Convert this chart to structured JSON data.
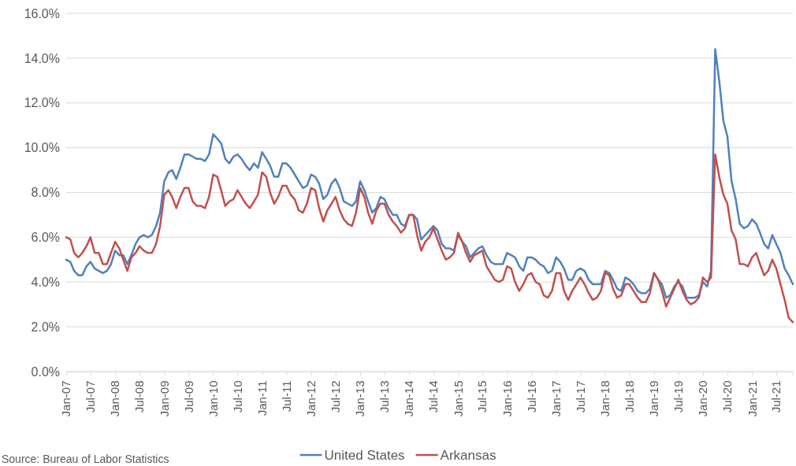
{
  "chart_data": {
    "type": "line",
    "legend": "bottom",
    "grid": "y",
    "marker": "none",
    "line_style": "solid",
    "annotations": [
      "Source: Bureau of Labor Statistics"
    ],
    "ylim": [
      0,
      16
    ],
    "yticks": [
      {
        "value": 0,
        "label": "0.0%"
      },
      {
        "value": 2,
        "label": "2.0%"
      },
      {
        "value": 4,
        "label": "4.0%"
      },
      {
        "value": 6,
        "label": "6.0%"
      },
      {
        "value": 8,
        "label": "8.0%"
      },
      {
        "value": 10,
        "label": "10.0%"
      },
      {
        "value": 12,
        "label": "12.0%"
      },
      {
        "value": 14,
        "label": "14.0%"
      },
      {
        "value": 16,
        "label": "16.0%"
      }
    ],
    "xlim": [
      "2007-01",
      "2021-11"
    ],
    "xticks": [
      {
        "value": "2007-01",
        "label": "Jan-07"
      },
      {
        "value": "2007-07",
        "label": "Jul-07"
      },
      {
        "value": "2008-01",
        "label": "Jan-08"
      },
      {
        "value": "2008-07",
        "label": "Jul-08"
      },
      {
        "value": "2009-01",
        "label": "Jan-09"
      },
      {
        "value": "2009-07",
        "label": "Jul-09"
      },
      {
        "value": "2010-01",
        "label": "Jan-10"
      },
      {
        "value": "2010-07",
        "label": "Jul-10"
      },
      {
        "value": "2011-01",
        "label": "Jan-11"
      },
      {
        "value": "2011-07",
        "label": "Jul-11"
      },
      {
        "value": "2012-01",
        "label": "Jan-12"
      },
      {
        "value": "2012-07",
        "label": "Jul-12"
      },
      {
        "value": "2013-01",
        "label": "Jan-13"
      },
      {
        "value": "2013-07",
        "label": "Jul-13"
      },
      {
        "value": "2014-01",
        "label": "Jan-14"
      },
      {
        "value": "2014-07",
        "label": "Jul-14"
      },
      {
        "value": "2015-01",
        "label": "Jan-15"
      },
      {
        "value": "2015-07",
        "label": "Jul-15"
      },
      {
        "value": "2016-01",
        "label": "Jan-16"
      },
      {
        "value": "2016-07",
        "label": "Jul-16"
      },
      {
        "value": "2017-01",
        "label": "Jan-17"
      },
      {
        "value": "2017-07",
        "label": "Jul-17"
      },
      {
        "value": "2018-01",
        "label": "Jan-18"
      },
      {
        "value": "2018-07",
        "label": "Jul-18"
      },
      {
        "value": "2019-01",
        "label": "Jan-19"
      },
      {
        "value": "2019-07",
        "label": "Jul-19"
      },
      {
        "value": "2020-01",
        "label": "Jan-20"
      },
      {
        "value": "2020-07",
        "label": "Jul-20"
      },
      {
        "value": "2021-01",
        "label": "Jan-21"
      },
      {
        "value": "2021-07",
        "label": "Jul-21"
      }
    ],
    "x": [
      "2007-01",
      "2007-02",
      "2007-03",
      "2007-04",
      "2007-05",
      "2007-06",
      "2007-07",
      "2007-08",
      "2007-09",
      "2007-10",
      "2007-11",
      "2007-12",
      "2008-01",
      "2008-02",
      "2008-03",
      "2008-04",
      "2008-05",
      "2008-06",
      "2008-07",
      "2008-08",
      "2008-09",
      "2008-10",
      "2008-11",
      "2008-12",
      "2009-01",
      "2009-02",
      "2009-03",
      "2009-04",
      "2009-05",
      "2009-06",
      "2009-07",
      "2009-08",
      "2009-09",
      "2009-10",
      "2009-11",
      "2009-12",
      "2010-01",
      "2010-02",
      "2010-03",
      "2010-04",
      "2010-05",
      "2010-06",
      "2010-07",
      "2010-08",
      "2010-09",
      "2010-10",
      "2010-11",
      "2010-12",
      "2011-01",
      "2011-02",
      "2011-03",
      "2011-04",
      "2011-05",
      "2011-06",
      "2011-07",
      "2011-08",
      "2011-09",
      "2011-10",
      "2011-11",
      "2011-12",
      "2012-01",
      "2012-02",
      "2012-03",
      "2012-04",
      "2012-05",
      "2012-06",
      "2012-07",
      "2012-08",
      "2012-09",
      "2012-10",
      "2012-11",
      "2012-12",
      "2013-01",
      "2013-02",
      "2013-03",
      "2013-04",
      "2013-05",
      "2013-06",
      "2013-07",
      "2013-08",
      "2013-09",
      "2013-10",
      "2013-11",
      "2013-12",
      "2014-01",
      "2014-02",
      "2014-03",
      "2014-04",
      "2014-05",
      "2014-06",
      "2014-07",
      "2014-08",
      "2014-09",
      "2014-10",
      "2014-11",
      "2014-12",
      "2015-01",
      "2015-02",
      "2015-03",
      "2015-04",
      "2015-05",
      "2015-06",
      "2015-07",
      "2015-08",
      "2015-09",
      "2015-10",
      "2015-11",
      "2015-12",
      "2016-01",
      "2016-02",
      "2016-03",
      "2016-04",
      "2016-05",
      "2016-06",
      "2016-07",
      "2016-08",
      "2016-09",
      "2016-10",
      "2016-11",
      "2016-12",
      "2017-01",
      "2017-02",
      "2017-03",
      "2017-04",
      "2017-05",
      "2017-06",
      "2017-07",
      "2017-08",
      "2017-09",
      "2017-10",
      "2017-11",
      "2017-12",
      "2018-01",
      "2018-02",
      "2018-03",
      "2018-04",
      "2018-05",
      "2018-06",
      "2018-07",
      "2018-08",
      "2018-09",
      "2018-10",
      "2018-11",
      "2018-12",
      "2019-01",
      "2019-02",
      "2019-03",
      "2019-04",
      "2019-05",
      "2019-06",
      "2019-07",
      "2019-08",
      "2019-09",
      "2019-10",
      "2019-11",
      "2019-12",
      "2020-01",
      "2020-02",
      "2020-03",
      "2020-04",
      "2020-05",
      "2020-06",
      "2020-07",
      "2020-08",
      "2020-09",
      "2020-10",
      "2020-11",
      "2020-12",
      "2021-01",
      "2021-02",
      "2021-03",
      "2021-04",
      "2021-05",
      "2021-06",
      "2021-07",
      "2021-08",
      "2021-09",
      "2021-10",
      "2021-11"
    ],
    "series": [
      {
        "name": "United States",
        "color": "#4f81bd",
        "values": [
          5.0,
          4.9,
          4.5,
          4.3,
          4.3,
          4.7,
          4.9,
          4.6,
          4.5,
          4.4,
          4.5,
          4.8,
          5.4,
          5.2,
          5.2,
          4.8,
          5.2,
          5.7,
          6.0,
          6.1,
          6.0,
          6.1,
          6.5,
          7.1,
          8.5,
          8.9,
          9.0,
          8.6,
          9.1,
          9.7,
          9.7,
          9.6,
          9.5,
          9.5,
          9.4,
          9.7,
          10.6,
          10.4,
          10.2,
          9.5,
          9.3,
          9.6,
          9.7,
          9.5,
          9.2,
          9.0,
          9.3,
          9.1,
          9.8,
          9.5,
          9.2,
          8.7,
          8.7,
          9.3,
          9.3,
          9.1,
          8.8,
          8.5,
          8.2,
          8.3,
          8.8,
          8.7,
          8.4,
          7.7,
          7.9,
          8.4,
          8.6,
          8.2,
          7.6,
          7.5,
          7.4,
          7.6,
          8.5,
          8.1,
          7.6,
          7.1,
          7.3,
          7.8,
          7.7,
          7.3,
          7.0,
          7.0,
          6.6,
          6.5,
          7.0,
          7.0,
          6.8,
          5.9,
          6.1,
          6.3,
          6.5,
          6.3,
          5.7,
          5.5,
          5.5,
          5.4,
          6.1,
          5.8,
          5.6,
          5.1,
          5.3,
          5.5,
          5.6,
          5.2,
          4.9,
          4.8,
          4.8,
          4.8,
          5.3,
          5.2,
          5.1,
          4.7,
          4.5,
          5.1,
          5.1,
          5.0,
          4.8,
          4.7,
          4.4,
          4.5,
          5.1,
          4.9,
          4.6,
          4.1,
          4.1,
          4.5,
          4.6,
          4.5,
          4.1,
          3.9,
          3.9,
          3.9,
          4.5,
          4.4,
          4.1,
          3.7,
          3.6,
          4.2,
          4.1,
          3.9,
          3.6,
          3.5,
          3.5,
          3.7,
          4.4,
          4.1,
          3.9,
          3.3,
          3.4,
          3.8,
          4.0,
          3.8,
          3.3,
          3.3,
          3.3,
          3.4,
          4.0,
          3.8,
          4.5,
          14.4,
          13.0,
          11.2,
          10.5,
          8.5,
          7.7,
          6.6,
          6.4,
          6.5,
          6.8,
          6.6,
          6.2,
          5.7,
          5.5,
          6.1,
          5.7,
          5.3,
          4.6,
          4.3,
          3.9
        ]
      },
      {
        "name": "Arkansas",
        "color": "#c0504d",
        "values": [
          6.0,
          5.9,
          5.3,
          5.1,
          5.3,
          5.6,
          6.0,
          5.3,
          5.3,
          4.8,
          4.8,
          5.3,
          5.8,
          5.5,
          5.0,
          4.5,
          5.1,
          5.3,
          5.6,
          5.4,
          5.3,
          5.3,
          5.7,
          6.5,
          7.9,
          8.1,
          7.8,
          7.3,
          7.8,
          8.2,
          8.2,
          7.6,
          7.4,
          7.4,
          7.3,
          7.8,
          8.8,
          8.7,
          8.1,
          7.4,
          7.6,
          7.7,
          8.1,
          7.8,
          7.5,
          7.3,
          7.6,
          7.9,
          8.9,
          8.7,
          8.0,
          7.5,
          7.8,
          8.3,
          8.3,
          7.9,
          7.7,
          7.2,
          7.1,
          7.5,
          8.2,
          8.1,
          7.3,
          6.7,
          7.2,
          7.5,
          7.8,
          7.2,
          6.8,
          6.6,
          6.5,
          7.1,
          8.2,
          7.8,
          7.1,
          6.6,
          7.2,
          7.5,
          7.5,
          7.0,
          6.7,
          6.5,
          6.2,
          6.4,
          7.0,
          7.0,
          6.1,
          5.4,
          5.8,
          6.0,
          6.4,
          5.9,
          5.4,
          5.0,
          5.1,
          5.3,
          6.2,
          5.8,
          5.3,
          4.9,
          5.2,
          5.3,
          5.4,
          4.7,
          4.4,
          4.1,
          4.0,
          4.1,
          4.7,
          4.6,
          4.0,
          3.6,
          3.9,
          4.3,
          4.4,
          4.0,
          3.9,
          3.4,
          3.3,
          3.6,
          4.4,
          4.4,
          3.6,
          3.2,
          3.6,
          3.9,
          4.2,
          3.9,
          3.5,
          3.2,
          3.3,
          3.6,
          4.4,
          4.3,
          3.7,
          3.3,
          3.4,
          3.9,
          3.9,
          3.6,
          3.3,
          3.1,
          3.1,
          3.5,
          4.4,
          4.1,
          3.6,
          2.9,
          3.3,
          3.7,
          4.1,
          3.6,
          3.2,
          3.0,
          3.1,
          3.3,
          4.2,
          4.0,
          4.2,
          9.7,
          8.7,
          7.9,
          7.5,
          6.3,
          5.9,
          4.8,
          4.8,
          4.7,
          5.1,
          5.3,
          4.8,
          4.3,
          4.5,
          5.0,
          4.6,
          3.9,
          3.2,
          2.4,
          2.2
        ]
      }
    ]
  }
}
